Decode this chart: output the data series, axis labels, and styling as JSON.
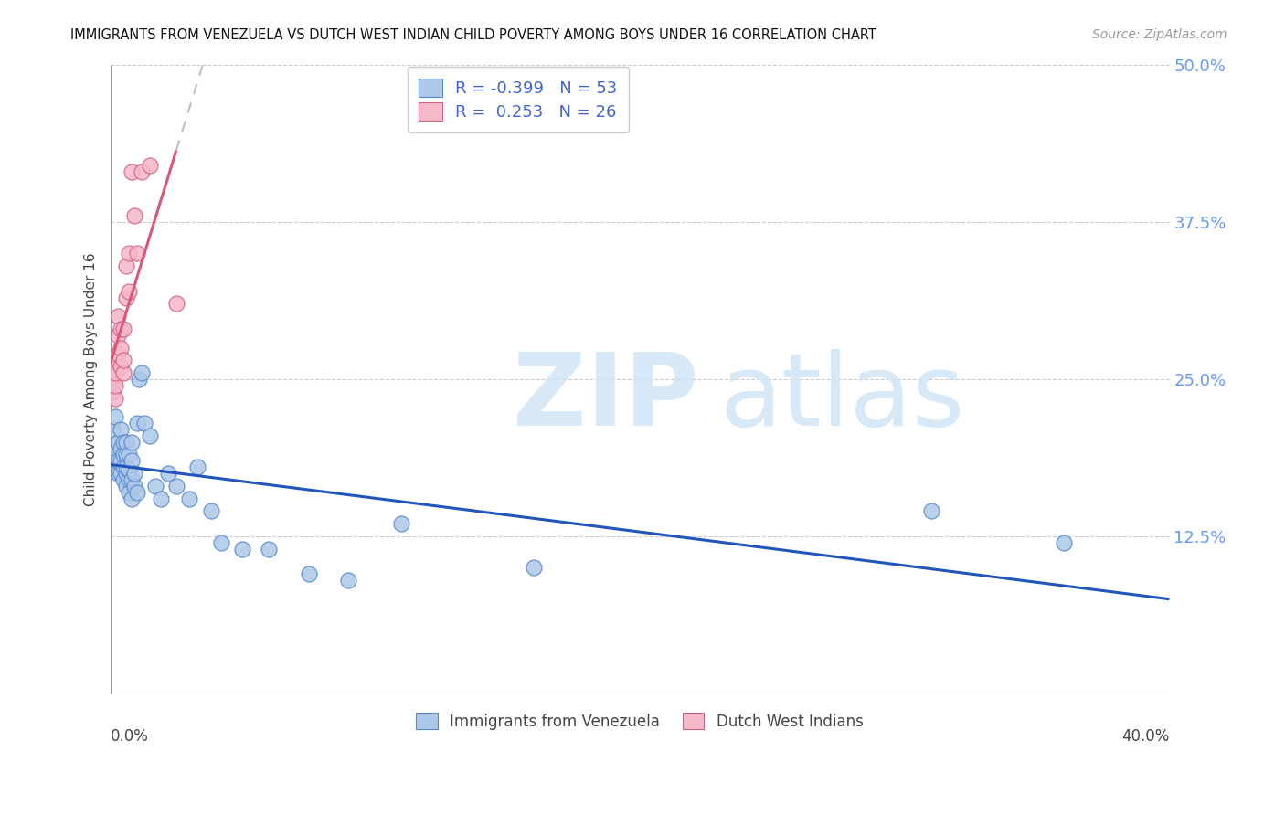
{
  "title": "IMMIGRANTS FROM VENEZUELA VS DUTCH WEST INDIAN CHILD POVERTY AMONG BOYS UNDER 16 CORRELATION CHART",
  "source": "Source: ZipAtlas.com",
  "ylabel": "Child Poverty Among Boys Under 16",
  "legend_label1": "Immigrants from Venezuela",
  "legend_label2": "Dutch West Indians",
  "R_venezuela": -0.399,
  "N_venezuela": 53,
  "R_dutch": 0.253,
  "N_dutch": 26,
  "venezuela_color": "#adc8e8",
  "venezuela_edge": "#5588cc",
  "dutch_color": "#f5b8c8",
  "dutch_edge": "#d06080",
  "trendline_venezuela_color": "#2255bb",
  "trendline_dutch_color": "#dd5577",
  "trendline_extend_color": "#bbbbbb",
  "watermark_zip_color": "#ddeeff",
  "watermark_atlas_color": "#c8d8f0",
  "xlim": [
    0.0,
    0.4
  ],
  "ylim": [
    0.0,
    0.5
  ],
  "yticks": [
    0.0,
    0.125,
    0.25,
    0.375,
    0.5
  ],
  "ytick_labels": [
    "",
    "12.5%",
    "25.0%",
    "37.5%",
    "50.0%"
  ],
  "venezuela_x": [
    0.001,
    0.001,
    0.002,
    0.002,
    0.002,
    0.003,
    0.003,
    0.003,
    0.004,
    0.004,
    0.004,
    0.004,
    0.005,
    0.005,
    0.005,
    0.005,
    0.006,
    0.006,
    0.006,
    0.006,
    0.006,
    0.007,
    0.007,
    0.007,
    0.007,
    0.008,
    0.008,
    0.008,
    0.008,
    0.009,
    0.009,
    0.01,
    0.01,
    0.011,
    0.012,
    0.013,
    0.015,
    0.017,
    0.019,
    0.022,
    0.025,
    0.03,
    0.033,
    0.038,
    0.042,
    0.05,
    0.06,
    0.075,
    0.09,
    0.11,
    0.16,
    0.31,
    0.36
  ],
  "venezuela_y": [
    0.19,
    0.21,
    0.185,
    0.195,
    0.22,
    0.175,
    0.185,
    0.2,
    0.175,
    0.185,
    0.195,
    0.21,
    0.17,
    0.18,
    0.19,
    0.2,
    0.165,
    0.175,
    0.18,
    0.19,
    0.2,
    0.16,
    0.17,
    0.178,
    0.19,
    0.155,
    0.17,
    0.185,
    0.2,
    0.165,
    0.175,
    0.16,
    0.215,
    0.25,
    0.255,
    0.215,
    0.205,
    0.165,
    0.155,
    0.175,
    0.165,
    0.155,
    0.18,
    0.145,
    0.12,
    0.115,
    0.115,
    0.095,
    0.09,
    0.135,
    0.1,
    0.145,
    0.12
  ],
  "dutch_x": [
    0.001,
    0.001,
    0.001,
    0.001,
    0.002,
    0.002,
    0.002,
    0.003,
    0.003,
    0.003,
    0.004,
    0.004,
    0.004,
    0.005,
    0.005,
    0.005,
    0.006,
    0.006,
    0.007,
    0.007,
    0.008,
    0.009,
    0.01,
    0.012,
    0.015,
    0.025
  ],
  "dutch_y": [
    0.24,
    0.248,
    0.252,
    0.258,
    0.235,
    0.245,
    0.255,
    0.27,
    0.285,
    0.3,
    0.26,
    0.275,
    0.29,
    0.255,
    0.265,
    0.29,
    0.315,
    0.34,
    0.32,
    0.35,
    0.415,
    0.38,
    0.35,
    0.415,
    0.42,
    0.31
  ],
  "dutch_trendline_x_start": 0.0,
  "dutch_trendline_x_solid_end": 0.025,
  "dutch_trendline_x_end": 0.4,
  "ven_trendline_x_start": 0.0,
  "ven_trendline_x_end": 0.4
}
